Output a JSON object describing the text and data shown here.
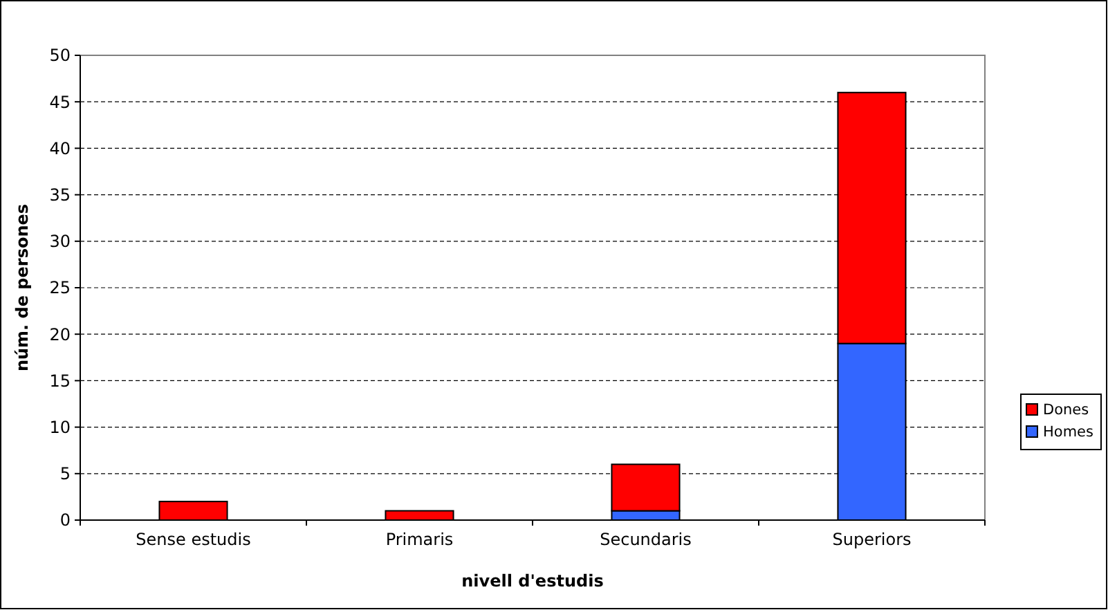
{
  "chart_data": {
    "type": "bar",
    "stacked": true,
    "xlabel": "nivell d'estudis",
    "ylabel": "núm. de persones",
    "categories": [
      "Sense estudis",
      "Primaris",
      "Secundaris",
      "Superiors"
    ],
    "series": [
      {
        "name": "Homes",
        "color": "#3366ff",
        "values": [
          0,
          0,
          1,
          19
        ]
      },
      {
        "name": "Dones",
        "color": "#ff0000",
        "values": [
          2,
          1,
          5,
          27
        ]
      }
    ],
    "ylim": [
      0,
      50
    ],
    "yticks": [
      0,
      5,
      10,
      15,
      20,
      25,
      30,
      35,
      40,
      45,
      50
    ],
    "grid": "y",
    "legend": "right"
  }
}
